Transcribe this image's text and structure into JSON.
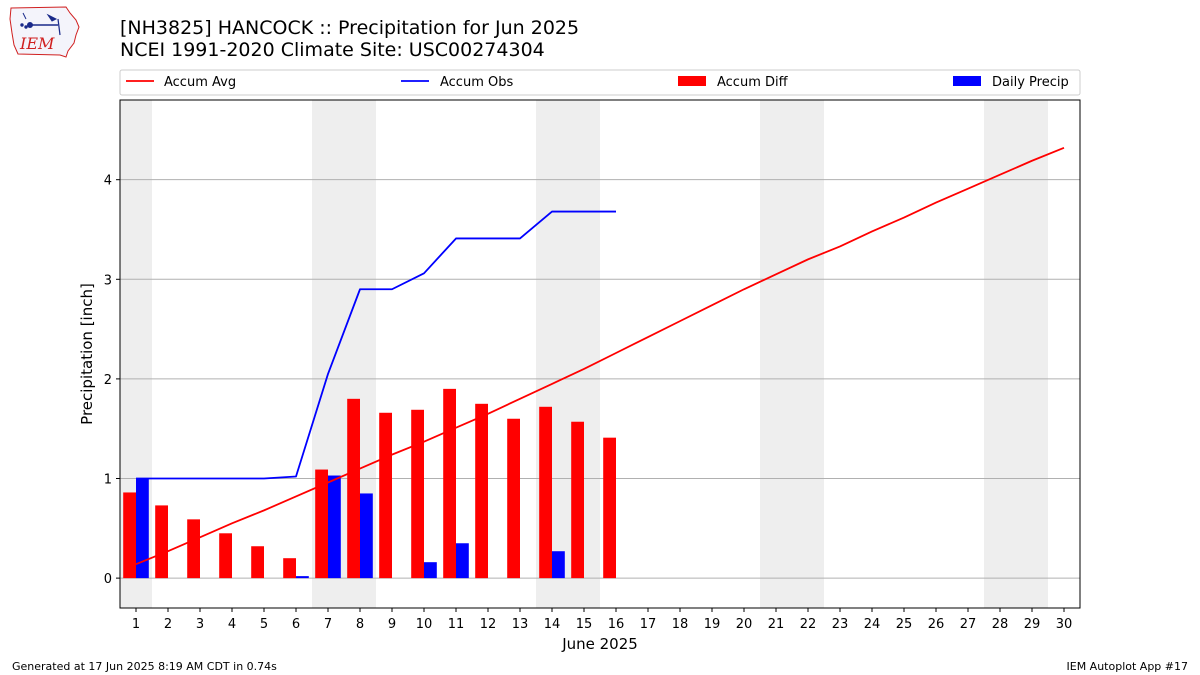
{
  "header": {
    "title_line1": "[NH3825] HANCOCK :: Precipitation for Jun 2025",
    "title_line2": "NCEI 1991-2020 Climate Site: USC00274304",
    "logo_text": "IEM"
  },
  "footer": {
    "generated": "Generated at 17 Jun 2025 8:19 AM CDT in 0.74s",
    "app": "IEM Autoplot App #17"
  },
  "chart_data": {
    "type": "bar",
    "xlabel": "June 2025",
    "ylabel": "Precipitation [inch]",
    "xlim": [
      0.5,
      30.5
    ],
    "ylim": [
      -0.3,
      4.8
    ],
    "xticks": [
      1,
      2,
      3,
      4,
      5,
      6,
      7,
      8,
      9,
      10,
      11,
      12,
      13,
      14,
      15,
      16,
      17,
      18,
      19,
      20,
      21,
      22,
      23,
      24,
      25,
      26,
      27,
      28,
      29,
      30
    ],
    "yticks": [
      0,
      1,
      2,
      3,
      4
    ],
    "grid": "horizontal",
    "legend_placement": "top",
    "weekend_shading_days": [
      1,
      7,
      8,
      14,
      15,
      21,
      22,
      28,
      29
    ],
    "colors": {
      "accum_avg": "#ff0000",
      "accum_obs": "#0000ff",
      "accum_diff": "#ff0000",
      "daily_precip": "#0000ff",
      "weekend_shade": "#eeeeee",
      "grid": "#b0b0b0"
    },
    "series": [
      {
        "name": "Accum Avg",
        "type": "line",
        "x": [
          1,
          2,
          3,
          4,
          5,
          6,
          7,
          8,
          9,
          10,
          11,
          12,
          13,
          14,
          15,
          16,
          17,
          18,
          19,
          20,
          21,
          22,
          23,
          24,
          25,
          26,
          27,
          28,
          29,
          30
        ],
        "values": [
          0.14,
          0.27,
          0.41,
          0.55,
          0.68,
          0.82,
          0.96,
          1.1,
          1.24,
          1.37,
          1.51,
          1.65,
          1.8,
          1.95,
          2.1,
          2.26,
          2.42,
          2.58,
          2.74,
          2.9,
          3.05,
          3.2,
          3.33,
          3.48,
          3.62,
          3.77,
          3.91,
          4.05,
          4.19,
          4.32
        ]
      },
      {
        "name": "Accum Obs",
        "type": "line",
        "x": [
          1,
          2,
          3,
          4,
          5,
          6,
          7,
          8,
          9,
          10,
          11,
          12,
          13,
          14,
          15,
          16
        ],
        "values": [
          1.0,
          1.0,
          1.0,
          1.0,
          1.0,
          1.02,
          2.05,
          2.9,
          2.9,
          3.06,
          3.41,
          3.41,
          3.41,
          3.68,
          3.68,
          3.68
        ]
      },
      {
        "name": "Accum Diff",
        "type": "bar",
        "x": [
          1,
          2,
          3,
          4,
          5,
          6,
          7,
          8,
          9,
          10,
          11,
          12,
          13,
          14,
          15,
          16
        ],
        "values": [
          0.86,
          0.73,
          0.59,
          0.45,
          0.32,
          0.2,
          1.09,
          1.8,
          1.66,
          1.69,
          1.9,
          1.75,
          1.6,
          1.72,
          1.57,
          1.41
        ]
      },
      {
        "name": "Daily Precip",
        "type": "bar",
        "x": [
          1,
          2,
          3,
          4,
          5,
          6,
          7,
          8,
          9,
          10,
          11,
          12,
          13,
          14,
          15,
          16
        ],
        "values": [
          1.0,
          0,
          0,
          0,
          0,
          0.02,
          1.03,
          0.85,
          0,
          0.16,
          0.35,
          0,
          0,
          0.27,
          0,
          0
        ]
      }
    ]
  }
}
